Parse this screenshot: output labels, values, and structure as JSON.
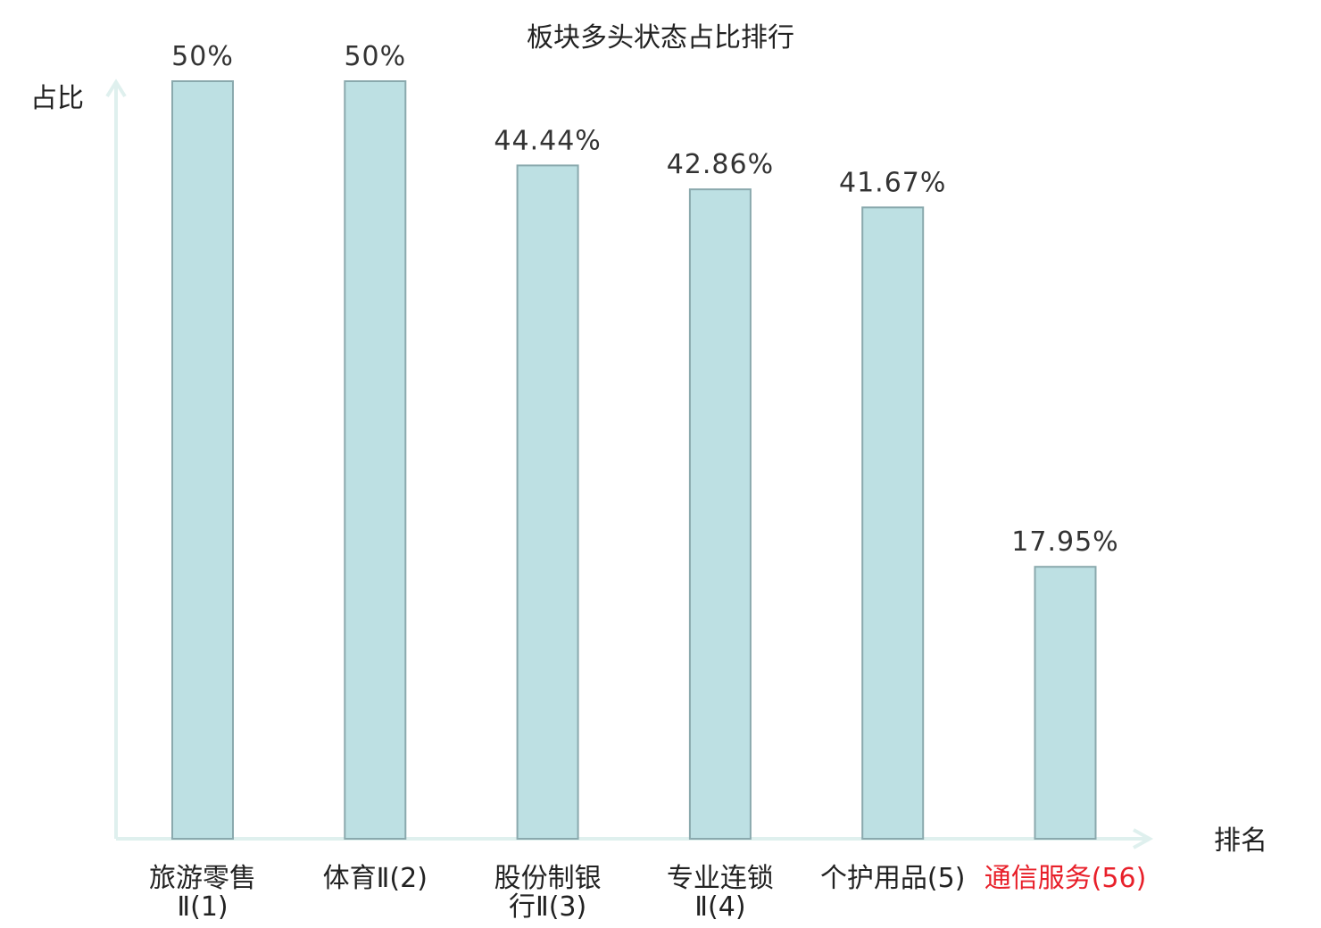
{
  "chart_data": {
    "type": "bar",
    "title": "板块多头状态占比排行",
    "ylabel": "占比",
    "xlabel": "排名",
    "ylim": [
      0,
      50
    ],
    "grid": false,
    "categories": [
      {
        "label": "旅游零售Ⅱ(1)",
        "name": "旅游零售Ⅱ",
        "rank": "(1)",
        "lines": [
          "旅游零售",
          "Ⅱ(1)"
        ],
        "highlight": false
      },
      {
        "label": "体育Ⅱ(2)",
        "name": "体育Ⅱ",
        "rank": "(2)",
        "lines": [
          "体育Ⅱ(2)"
        ],
        "highlight": false
      },
      {
        "label": "股份制银行Ⅱ(3)",
        "name": "股份制银行Ⅱ",
        "rank": "(3)",
        "lines": [
          "股份制银",
          "行Ⅱ(3)"
        ],
        "highlight": false
      },
      {
        "label": "专业连锁Ⅱ(4)",
        "name": "专业连锁Ⅱ",
        "rank": "(4)",
        "lines": [
          "专业连锁",
          "Ⅱ(4)"
        ],
        "highlight": false
      },
      {
        "label": "个护用品(5)",
        "name": "个护用品",
        "rank": "(5)",
        "lines": [
          "个护用品(5)"
        ],
        "highlight": false
      },
      {
        "label": "通信服务(56)",
        "name": "通信服务",
        "rank": "(56)",
        "lines": [
          "通信服务(56)"
        ],
        "highlight": true
      }
    ],
    "values": [
      50,
      50,
      44.44,
      42.86,
      41.67,
      17.95
    ],
    "value_labels": [
      "50%",
      "50%",
      "44.44%",
      "42.86%",
      "41.67%",
      "17.95%"
    ]
  },
  "colors": {
    "bar_fill": "#bde0e3",
    "bar_stroke": "#8aa9ad",
    "axis": "#dff0ee",
    "highlight": "#e8202a",
    "text": "#333333"
  }
}
